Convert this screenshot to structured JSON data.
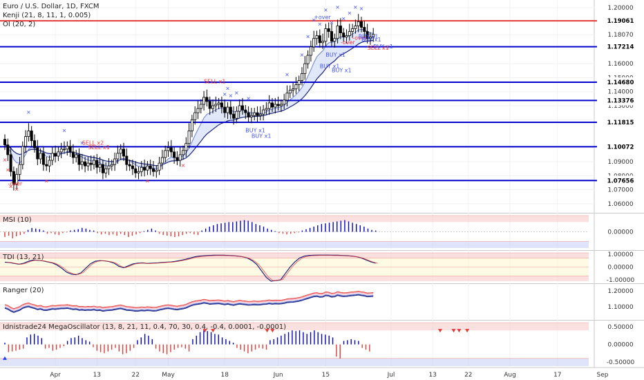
{
  "header": {
    "symbol": "Euro / U.S. Dollar, 1D, FXCM",
    "indicator_1": "Kenji (21, 8, 11, 1, 0.005)",
    "indicator_2": "OI (20, 2)"
  },
  "colors": {
    "candle_up": "#ffffff",
    "candle_down": "#000000",
    "line_blue": "#0000cc",
    "line_red": "#e53935",
    "band_fill": "#c9d6f5",
    "cross_blue": "#3f51ff",
    "cross_red": "#ff3030",
    "pink_zone": "#f7c6c6",
    "blue_zone": "#c5cef5",
    "yellow_zone": "#fff6cc"
  },
  "chart_data": [
    {
      "type": "candlestick",
      "pane": "main",
      "ylim": [
        1.055,
        1.2045
      ],
      "y_ticks": [
        "1.20000",
        "1.18070",
        "1.16000",
        "1.15000",
        "1.14000",
        "1.13000",
        "1.12000",
        "1.10000",
        "1.09000",
        "1.08000",
        "1.07000",
        "1.06000"
      ],
      "y_tick_values": [
        1.2,
        1.1807,
        1.16,
        1.15,
        1.14,
        1.13,
        1.12,
        1.1,
        1.09,
        1.08,
        1.07,
        1.06
      ],
      "level_lines": [
        {
          "label": "1.19061",
          "value": 1.19061,
          "color": "#e53935"
        },
        {
          "label": "1.17214",
          "value": 1.17214,
          "color": "#0000cc"
        },
        {
          "label": "1.14680",
          "value": 1.1468,
          "color": "#0000cc"
        },
        {
          "label": "1.13376",
          "value": 1.13376,
          "color": "#0000cc"
        },
        {
          "label": "1.11815",
          "value": 1.11815,
          "color": "#0000cc"
        },
        {
          "label": "1.10072",
          "value": 1.10072,
          "color": "#0000cc"
        },
        {
          "label": "1.07656",
          "value": 1.07656,
          "color": "#0000cc"
        }
      ],
      "close": [
        1.102,
        1.095,
        1.083,
        1.074,
        1.081,
        1.088,
        1.101,
        1.108,
        1.112,
        1.105,
        1.1,
        1.092,
        1.096,
        1.088,
        1.087,
        1.091,
        1.096,
        1.094,
        1.097,
        1.099,
        1.099,
        1.101,
        1.097,
        1.093,
        1.095,
        1.088,
        1.09,
        1.087,
        1.089,
        1.088,
        1.091,
        1.086,
        1.088,
        1.082,
        1.085,
        1.087,
        1.088,
        1.092,
        1.096,
        1.099,
        1.094,
        1.088,
        1.087,
        1.085,
        1.082,
        1.083,
        1.086,
        1.084,
        1.087,
        1.085,
        1.083,
        1.084,
        1.089,
        1.093,
        1.098,
        1.1,
        1.097,
        1.093,
        1.091,
        1.095,
        1.098,
        1.103,
        1.112,
        1.12,
        1.125,
        1.128,
        1.131,
        1.136,
        1.133,
        1.128,
        1.13,
        1.131,
        1.132,
        1.129,
        1.125,
        1.129,
        1.124,
        1.121,
        1.126,
        1.13,
        1.127,
        1.125,
        1.122,
        1.123,
        1.125,
        1.123,
        1.124,
        1.127,
        1.128,
        1.132,
        1.129,
        1.131,
        1.13,
        1.131,
        1.134,
        1.139,
        1.141,
        1.142,
        1.145,
        1.148,
        1.153,
        1.16,
        1.166,
        1.172,
        1.178,
        1.18,
        1.175,
        1.176,
        1.185,
        1.183,
        1.176,
        1.178,
        1.187,
        1.182,
        1.179,
        1.18,
        1.183,
        1.185,
        1.187,
        1.19,
        1.186,
        1.183,
        1.178,
        1.179,
        1.181
      ],
      "x_ticks": [
        "Apr",
        "13",
        "22",
        "May",
        "18",
        "Jun",
        "15",
        "Jul",
        "13",
        "22",
        "Aug",
        "17",
        "Sep"
      ],
      "x_tick_index": [
        17,
        31,
        44,
        55,
        74,
        92,
        108,
        130,
        144,
        156,
        170,
        186,
        203
      ],
      "signals": [
        "-over",
        "SELL x2",
        "SELL x1",
        "SELL x1",
        "BUY x1",
        "BUY x1",
        "BUY x1",
        "BUY x1",
        "BUY x1",
        "BUY x1",
        "+over",
        "-over",
        "-over",
        "BUY x1",
        "BUY x1",
        "SELL x1"
      ]
    },
    {
      "type": "histogram",
      "pane": "oscillator_1",
      "title": "MSI (10)",
      "ylim": [
        -0.25,
        0.25
      ],
      "y_ticks": [
        "0.00000"
      ],
      "y_tick_values": [
        0
      ],
      "values": [
        -0.08,
        -0.06,
        -0.1,
        -0.07,
        -0.05,
        -0.03,
        0.03,
        0.06,
        0.05,
        0.04,
        0.02,
        -0.03,
        -0.02,
        -0.04,
        -0.05,
        -0.02,
        -0.01,
        0.02,
        0.03,
        0.04,
        0.06,
        0.05,
        0.03,
        0.02,
        -0.02,
        -0.04,
        -0.03,
        -0.05,
        -0.04,
        -0.06,
        -0.03,
        -0.05,
        -0.08,
        -0.06,
        -0.04,
        -0.02,
        0.01,
        0.03,
        0.05,
        0.02,
        -0.03,
        -0.05,
        -0.06,
        -0.07,
        -0.08,
        -0.07,
        -0.05,
        -0.03,
        -0.02,
        -0.04,
        -0.05,
        0.02,
        0.05,
        0.08,
        0.1,
        0.12,
        0.13,
        0.14,
        0.15,
        0.15,
        0.16,
        0.17,
        0.18,
        0.17,
        0.15,
        0.12,
        0.1,
        0.08,
        0.05,
        0.03,
        0.01,
        -0.02,
        -0.03,
        -0.04,
        -0.03,
        -0.02,
        -0.01,
        0.02,
        0.04,
        0.06,
        0.08,
        0.1,
        0.12,
        0.13,
        0.14,
        0.15,
        0.16,
        0.17,
        0.18,
        0.16,
        0.14,
        0.12,
        0.1,
        0.08,
        0.05,
        0.03,
        0.02
      ],
      "zones": [
        {
          "from": 0.15,
          "to": 0.25,
          "color": "#f7c6c6"
        },
        {
          "from": -0.25,
          "to": -0.15,
          "color": "#c5cef5"
        }
      ]
    },
    {
      "type": "line",
      "pane": "oscillator_2",
      "title": "TDI (13, 21)",
      "ylim": [
        -1.1,
        1.1
      ],
      "y_ticks": [
        "1.00000",
        "0.00000",
        "-1.00000"
      ],
      "y_tick_values": [
        1,
        0,
        -1
      ],
      "values": [
        0.38,
        0.35,
        0.28,
        0.22,
        0.3,
        0.45,
        0.55,
        0.52,
        0.48,
        0.4,
        0.32,
        0.15,
        -0.1,
        -0.4,
        -0.55,
        -0.6,
        -0.45,
        -0.1,
        0.25,
        0.45,
        0.5,
        0.48,
        0.42,
        0.3,
        0.05,
        -0.05,
        0.1,
        0.25,
        0.3,
        0.32,
        0.28,
        0.3,
        0.32,
        0.35,
        0.38,
        0.4,
        0.45,
        0.52,
        0.6,
        0.7,
        0.8,
        0.85,
        0.88,
        0.9,
        0.92,
        0.92,
        0.92,
        0.9,
        0.88,
        0.85,
        0.8,
        0.7,
        0.5,
        0.2,
        -0.3,
        -0.8,
        -1.1,
        -1.05,
        -1.0,
        -0.5,
        0.0,
        0.4,
        0.7,
        0.85,
        0.9,
        0.92,
        0.93,
        0.93,
        0.93,
        0.92,
        0.92,
        0.9,
        0.88,
        0.85,
        0.8,
        0.7,
        0.55,
        0.4,
        0.3
      ],
      "zones": [
        {
          "from": 0.7,
          "to": 1.1,
          "color": "#f7c6c6"
        },
        {
          "from": 0.0,
          "to": 0.7,
          "color": "#fff6cc"
        },
        {
          "from": -0.7,
          "to": 0.0,
          "color": "#fff6cc"
        },
        {
          "from": -1.1,
          "to": -0.7,
          "color": "#f7c6c6"
        }
      ]
    },
    {
      "type": "line",
      "pane": "oscillator_3",
      "title": "Ranger (20)",
      "ylim": [
        1.03,
        1.23
      ],
      "y_ticks": [
        "1.20000",
        "1.10000"
      ],
      "y_tick_values": [
        1.2,
        1.1
      ]
    },
    {
      "type": "histogram",
      "pane": "oscillator_4",
      "title": "Idnistrade24 MegaOscillator (13, 8, 21, 11, 0.4, 70, 30, 0.4, -0.4, 0.0001, -0.0001)",
      "ylim": [
        -0.62,
        0.62
      ],
      "y_ticks": [
        "0.50000",
        "0.00000",
        "-0.50000"
      ],
      "y_tick_values": [
        0.5,
        0,
        -0.5
      ],
      "values": [
        0.05,
        -0.22,
        -0.2,
        -0.18,
        -0.15,
        -0.12,
        0.2,
        0.28,
        0.3,
        0.25,
        0.18,
        -0.12,
        -0.1,
        -0.18,
        -0.15,
        -0.1,
        -0.05,
        0.1,
        0.18,
        0.2,
        0.25,
        0.18,
        0.12,
        0.08,
        -0.08,
        -0.18,
        -0.22,
        -0.25,
        -0.2,
        -0.15,
        -0.1,
        -0.2,
        -0.28,
        -0.25,
        -0.18,
        -0.1,
        0.12,
        0.2,
        0.3,
        0.25,
        0.15,
        -0.12,
        -0.2,
        -0.25,
        -0.28,
        -0.22,
        -0.15,
        -0.1,
        -0.08,
        -0.12,
        -0.2,
        0.15,
        0.25,
        0.35,
        0.4,
        0.38,
        0.35,
        0.3,
        0.28,
        0.2,
        0.15,
        0.1,
        0.05,
        -0.1,
        -0.15,
        -0.2,
        -0.25,
        -0.2,
        -0.15,
        -0.1,
        -0.12,
        -0.15,
        0.12,
        0.15,
        0.2,
        0.25,
        0.3,
        0.35,
        0.4,
        0.38,
        0.4,
        0.35,
        0.3,
        0.35,
        0.4,
        0.35,
        0.3,
        0.28,
        0.25,
        0.2,
        -0.35,
        -0.4,
        0.1,
        0.12,
        0.15,
        0.12,
        0.1,
        -0.1,
        -0.15,
        -0.2
      ],
      "zones": [
        {
          "from": 0.4,
          "to": 0.62,
          "color": "#f7c6c6"
        },
        {
          "from": -0.62,
          "to": -0.4,
          "color": "#c5cef5"
        }
      ]
    }
  ]
}
